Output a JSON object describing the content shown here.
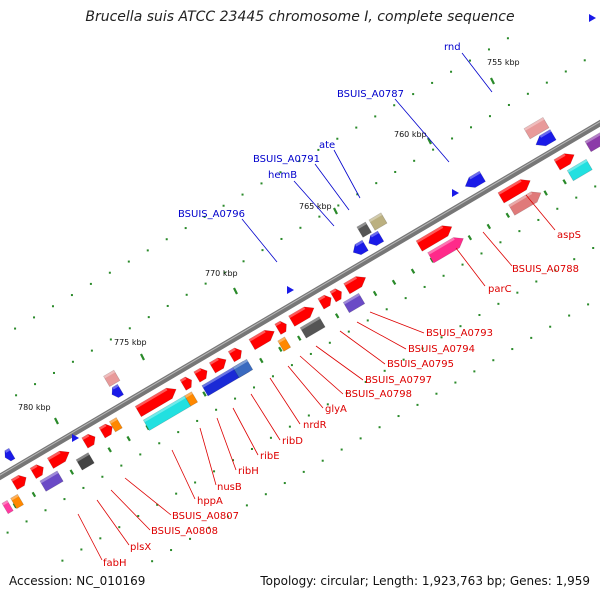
{
  "title": "Brucella suis ATCC 23445 chromosome I, complete sequence",
  "footer": {
    "accession": "Accession: NC_010169",
    "summary": "Topology: circular; Length: 1,923,763 bp; Genes: 1,959"
  },
  "colors": {
    "backbone": "#777777",
    "forward_cds": "#ff0000",
    "label_forward": "#0000cc",
    "label_reverse": "#dd0000",
    "tick": "#2a8a2a"
  },
  "ticks": [
    "755 kbp",
    "760 kbp",
    "765 kbp",
    "770 kbp",
    "775 kbp",
    "780 kbp"
  ],
  "labels_blue": [
    "rnd",
    "BSUIS_A0787",
    "ate",
    "BSUIS_A0791",
    "hemB",
    "BSUIS_A0796"
  ],
  "labels_red": [
    "aspS",
    "BSUIS_A0788",
    "parC",
    "BSUIS_A0793",
    "BSUIS_A0794",
    "BSUIS_A0795",
    "BSUIS_A0797",
    "BSUIS_A0798",
    "glyA",
    "nrdR",
    "ribD",
    "ribE",
    "ribH",
    "nusB",
    "hppA",
    "BSUIS_A0807",
    "BSUIS_A0808",
    "plsX",
    "fabH"
  ]
}
